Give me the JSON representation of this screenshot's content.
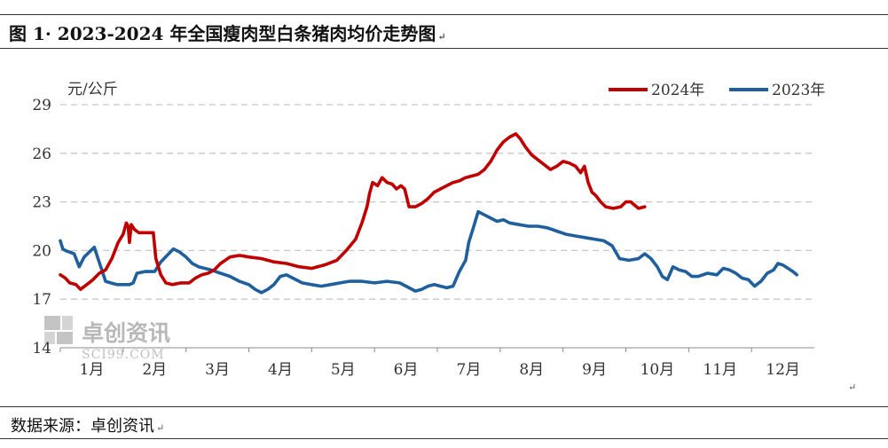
{
  "caption": "图 1· 2023-2024 年全国瘦肉型白条猪肉均价走势图",
  "source": "数据来源：卓创资讯",
  "paragraph_mark": "↵",
  "watermark": {
    "cn": "卓创资讯",
    "en": "SCI99.COM"
  },
  "colors": {
    "series_2024": "#c00000",
    "series_2023": "#1f5f9e",
    "grid": "#c8c8c8",
    "text": "#333333",
    "watermark": "#bcbcbc"
  },
  "chart_data": {
    "type": "line",
    "ylabel": "元/公斤",
    "xlabel": "",
    "ylim": [
      14,
      29
    ],
    "yticks": [
      14,
      17,
      20,
      23,
      26,
      29
    ],
    "xticks": [
      "1月",
      "2月",
      "3月",
      "4月",
      "5月",
      "6月",
      "7月",
      "8月",
      "9月",
      "10月",
      "11月",
      "12月"
    ],
    "xlim": [
      1,
      13
    ],
    "grid": "horizontal-dashed",
    "legend": "top-right",
    "series": [
      {
        "name": "2024年",
        "color": "#c00000",
        "points": [
          [
            1.0,
            18.5
          ],
          [
            1.08,
            18.3
          ],
          [
            1.15,
            18.0
          ],
          [
            1.25,
            17.9
          ],
          [
            1.32,
            17.6
          ],
          [
            1.42,
            17.9
          ],
          [
            1.52,
            18.2
          ],
          [
            1.62,
            18.6
          ],
          [
            1.72,
            18.8
          ],
          [
            1.82,
            19.5
          ],
          [
            1.92,
            20.5
          ],
          [
            2.0,
            21.0
          ],
          [
            2.05,
            21.7
          ],
          [
            2.08,
            21.5
          ],
          [
            2.1,
            20.5
          ],
          [
            2.13,
            21.6
          ],
          [
            2.18,
            21.3
          ],
          [
            2.25,
            21.1
          ],
          [
            2.32,
            21.1
          ],
          [
            2.4,
            21.1
          ],
          [
            2.48,
            21.1
          ],
          [
            2.52,
            19.5
          ],
          [
            2.6,
            18.5
          ],
          [
            2.68,
            18.0
          ],
          [
            2.78,
            17.9
          ],
          [
            2.92,
            18.0
          ],
          [
            3.05,
            18.0
          ],
          [
            3.15,
            18.3
          ],
          [
            3.25,
            18.5
          ],
          [
            3.35,
            18.6
          ],
          [
            3.45,
            18.8
          ],
          [
            3.55,
            19.2
          ],
          [
            3.7,
            19.6
          ],
          [
            3.85,
            19.7
          ],
          [
            4.0,
            19.6
          ],
          [
            4.2,
            19.5
          ],
          [
            4.4,
            19.3
          ],
          [
            4.6,
            19.2
          ],
          [
            4.8,
            19.0
          ],
          [
            5.0,
            18.9
          ],
          [
            5.2,
            19.1
          ],
          [
            5.4,
            19.4
          ],
          [
            5.55,
            20.0
          ],
          [
            5.7,
            20.7
          ],
          [
            5.8,
            21.7
          ],
          [
            5.88,
            22.7
          ],
          [
            5.92,
            23.5
          ],
          [
            5.97,
            24.2
          ],
          [
            6.05,
            24.0
          ],
          [
            6.12,
            24.5
          ],
          [
            6.2,
            24.2
          ],
          [
            6.28,
            24.1
          ],
          [
            6.35,
            23.8
          ],
          [
            6.42,
            24.0
          ],
          [
            6.48,
            23.8
          ],
          [
            6.55,
            22.7
          ],
          [
            6.65,
            22.7
          ],
          [
            6.75,
            22.9
          ],
          [
            6.85,
            23.2
          ],
          [
            6.95,
            23.6
          ],
          [
            7.05,
            23.8
          ],
          [
            7.15,
            24.0
          ],
          [
            7.25,
            24.2
          ],
          [
            7.35,
            24.3
          ],
          [
            7.45,
            24.5
          ],
          [
            7.55,
            24.6
          ],
          [
            7.65,
            24.7
          ],
          [
            7.75,
            25.0
          ],
          [
            7.85,
            25.5
          ],
          [
            7.95,
            26.2
          ],
          [
            8.05,
            26.7
          ],
          [
            8.15,
            27.0
          ],
          [
            8.25,
            27.2
          ],
          [
            8.32,
            26.9
          ],
          [
            8.4,
            26.4
          ],
          [
            8.5,
            25.9
          ],
          [
            8.6,
            25.6
          ],
          [
            8.7,
            25.3
          ],
          [
            8.8,
            25.0
          ],
          [
            8.9,
            25.2
          ],
          [
            9.0,
            25.5
          ],
          [
            9.1,
            25.4
          ],
          [
            9.2,
            25.2
          ],
          [
            9.28,
            24.8
          ],
          [
            9.34,
            25.2
          ],
          [
            9.4,
            24.2
          ],
          [
            9.46,
            23.6
          ],
          [
            9.52,
            23.4
          ],
          [
            9.6,
            23.0
          ],
          [
            9.68,
            22.7
          ],
          [
            9.8,
            22.6
          ],
          [
            9.92,
            22.7
          ],
          [
            10.0,
            23.0
          ],
          [
            10.08,
            23.0
          ],
          [
            10.14,
            22.8
          ],
          [
            10.2,
            22.6
          ],
          [
            10.3,
            22.7
          ]
        ]
      },
      {
        "name": "2023年",
        "color": "#1f5f9e",
        "points": [
          [
            1.0,
            20.6
          ],
          [
            1.04,
            20.1
          ],
          [
            1.08,
            20.0
          ],
          [
            1.15,
            19.9
          ],
          [
            1.22,
            19.8
          ],
          [
            1.3,
            19.0
          ],
          [
            1.38,
            19.6
          ],
          [
            1.46,
            19.9
          ],
          [
            1.54,
            20.2
          ],
          [
            1.6,
            19.5
          ],
          [
            1.66,
            18.8
          ],
          [
            1.72,
            18.1
          ],
          [
            1.8,
            18.0
          ],
          [
            1.9,
            17.9
          ],
          [
            2.0,
            17.9
          ],
          [
            2.1,
            17.9
          ],
          [
            2.16,
            18.0
          ],
          [
            2.22,
            18.6
          ],
          [
            2.35,
            18.7
          ],
          [
            2.5,
            18.7
          ],
          [
            2.6,
            19.3
          ],
          [
            2.7,
            19.7
          ],
          [
            2.8,
            20.1
          ],
          [
            2.9,
            19.9
          ],
          [
            3.0,
            19.6
          ],
          [
            3.1,
            19.2
          ],
          [
            3.2,
            19.0
          ],
          [
            3.3,
            18.9
          ],
          [
            3.4,
            18.8
          ],
          [
            3.55,
            18.6
          ],
          [
            3.7,
            18.4
          ],
          [
            3.85,
            18.1
          ],
          [
            4.0,
            17.9
          ],
          [
            4.1,
            17.6
          ],
          [
            4.2,
            17.4
          ],
          [
            4.3,
            17.6
          ],
          [
            4.4,
            17.9
          ],
          [
            4.5,
            18.4
          ],
          [
            4.6,
            18.5
          ],
          [
            4.7,
            18.3
          ],
          [
            4.85,
            18.0
          ],
          [
            5.0,
            17.9
          ],
          [
            5.15,
            17.8
          ],
          [
            5.3,
            17.9
          ],
          [
            5.45,
            18.0
          ],
          [
            5.6,
            18.1
          ],
          [
            5.8,
            18.1
          ],
          [
            6.0,
            18.0
          ],
          [
            6.2,
            18.1
          ],
          [
            6.4,
            18.0
          ],
          [
            6.55,
            17.7
          ],
          [
            6.65,
            17.5
          ],
          [
            6.75,
            17.6
          ],
          [
            6.85,
            17.8
          ],
          [
            6.95,
            17.9
          ],
          [
            7.05,
            17.8
          ],
          [
            7.15,
            17.7
          ],
          [
            7.25,
            17.8
          ],
          [
            7.35,
            18.7
          ],
          [
            7.45,
            19.4
          ],
          [
            7.5,
            20.5
          ],
          [
            7.58,
            21.5
          ],
          [
            7.65,
            22.4
          ],
          [
            7.75,
            22.2
          ],
          [
            7.85,
            22.0
          ],
          [
            7.95,
            21.8
          ],
          [
            8.05,
            21.9
          ],
          [
            8.15,
            21.7
          ],
          [
            8.3,
            21.6
          ],
          [
            8.45,
            21.5
          ],
          [
            8.6,
            21.5
          ],
          [
            8.75,
            21.4
          ],
          [
            8.9,
            21.2
          ],
          [
            9.05,
            21.0
          ],
          [
            9.2,
            20.9
          ],
          [
            9.35,
            20.8
          ],
          [
            9.5,
            20.7
          ],
          [
            9.65,
            20.6
          ],
          [
            9.78,
            20.3
          ],
          [
            9.9,
            19.5
          ],
          [
            10.05,
            19.4
          ],
          [
            10.2,
            19.5
          ],
          [
            10.3,
            19.8
          ],
          [
            10.4,
            19.5
          ],
          [
            10.5,
            19.0
          ],
          [
            10.58,
            18.4
          ],
          [
            10.66,
            18.2
          ],
          [
            10.75,
            19.0
          ],
          [
            10.85,
            18.8
          ],
          [
            10.95,
            18.7
          ],
          [
            11.05,
            18.4
          ],
          [
            11.15,
            18.4
          ],
          [
            11.3,
            18.6
          ],
          [
            11.45,
            18.5
          ],
          [
            11.55,
            18.9
          ],
          [
            11.65,
            18.8
          ],
          [
            11.75,
            18.6
          ],
          [
            11.85,
            18.3
          ],
          [
            11.95,
            18.2
          ],
          [
            12.05,
            17.8
          ],
          [
            12.15,
            18.1
          ],
          [
            12.25,
            18.6
          ],
          [
            12.35,
            18.8
          ],
          [
            12.42,
            19.2
          ],
          [
            12.5,
            19.1
          ],
          [
            12.58,
            18.9
          ],
          [
            12.66,
            18.7
          ],
          [
            12.72,
            18.5
          ]
        ]
      }
    ]
  }
}
